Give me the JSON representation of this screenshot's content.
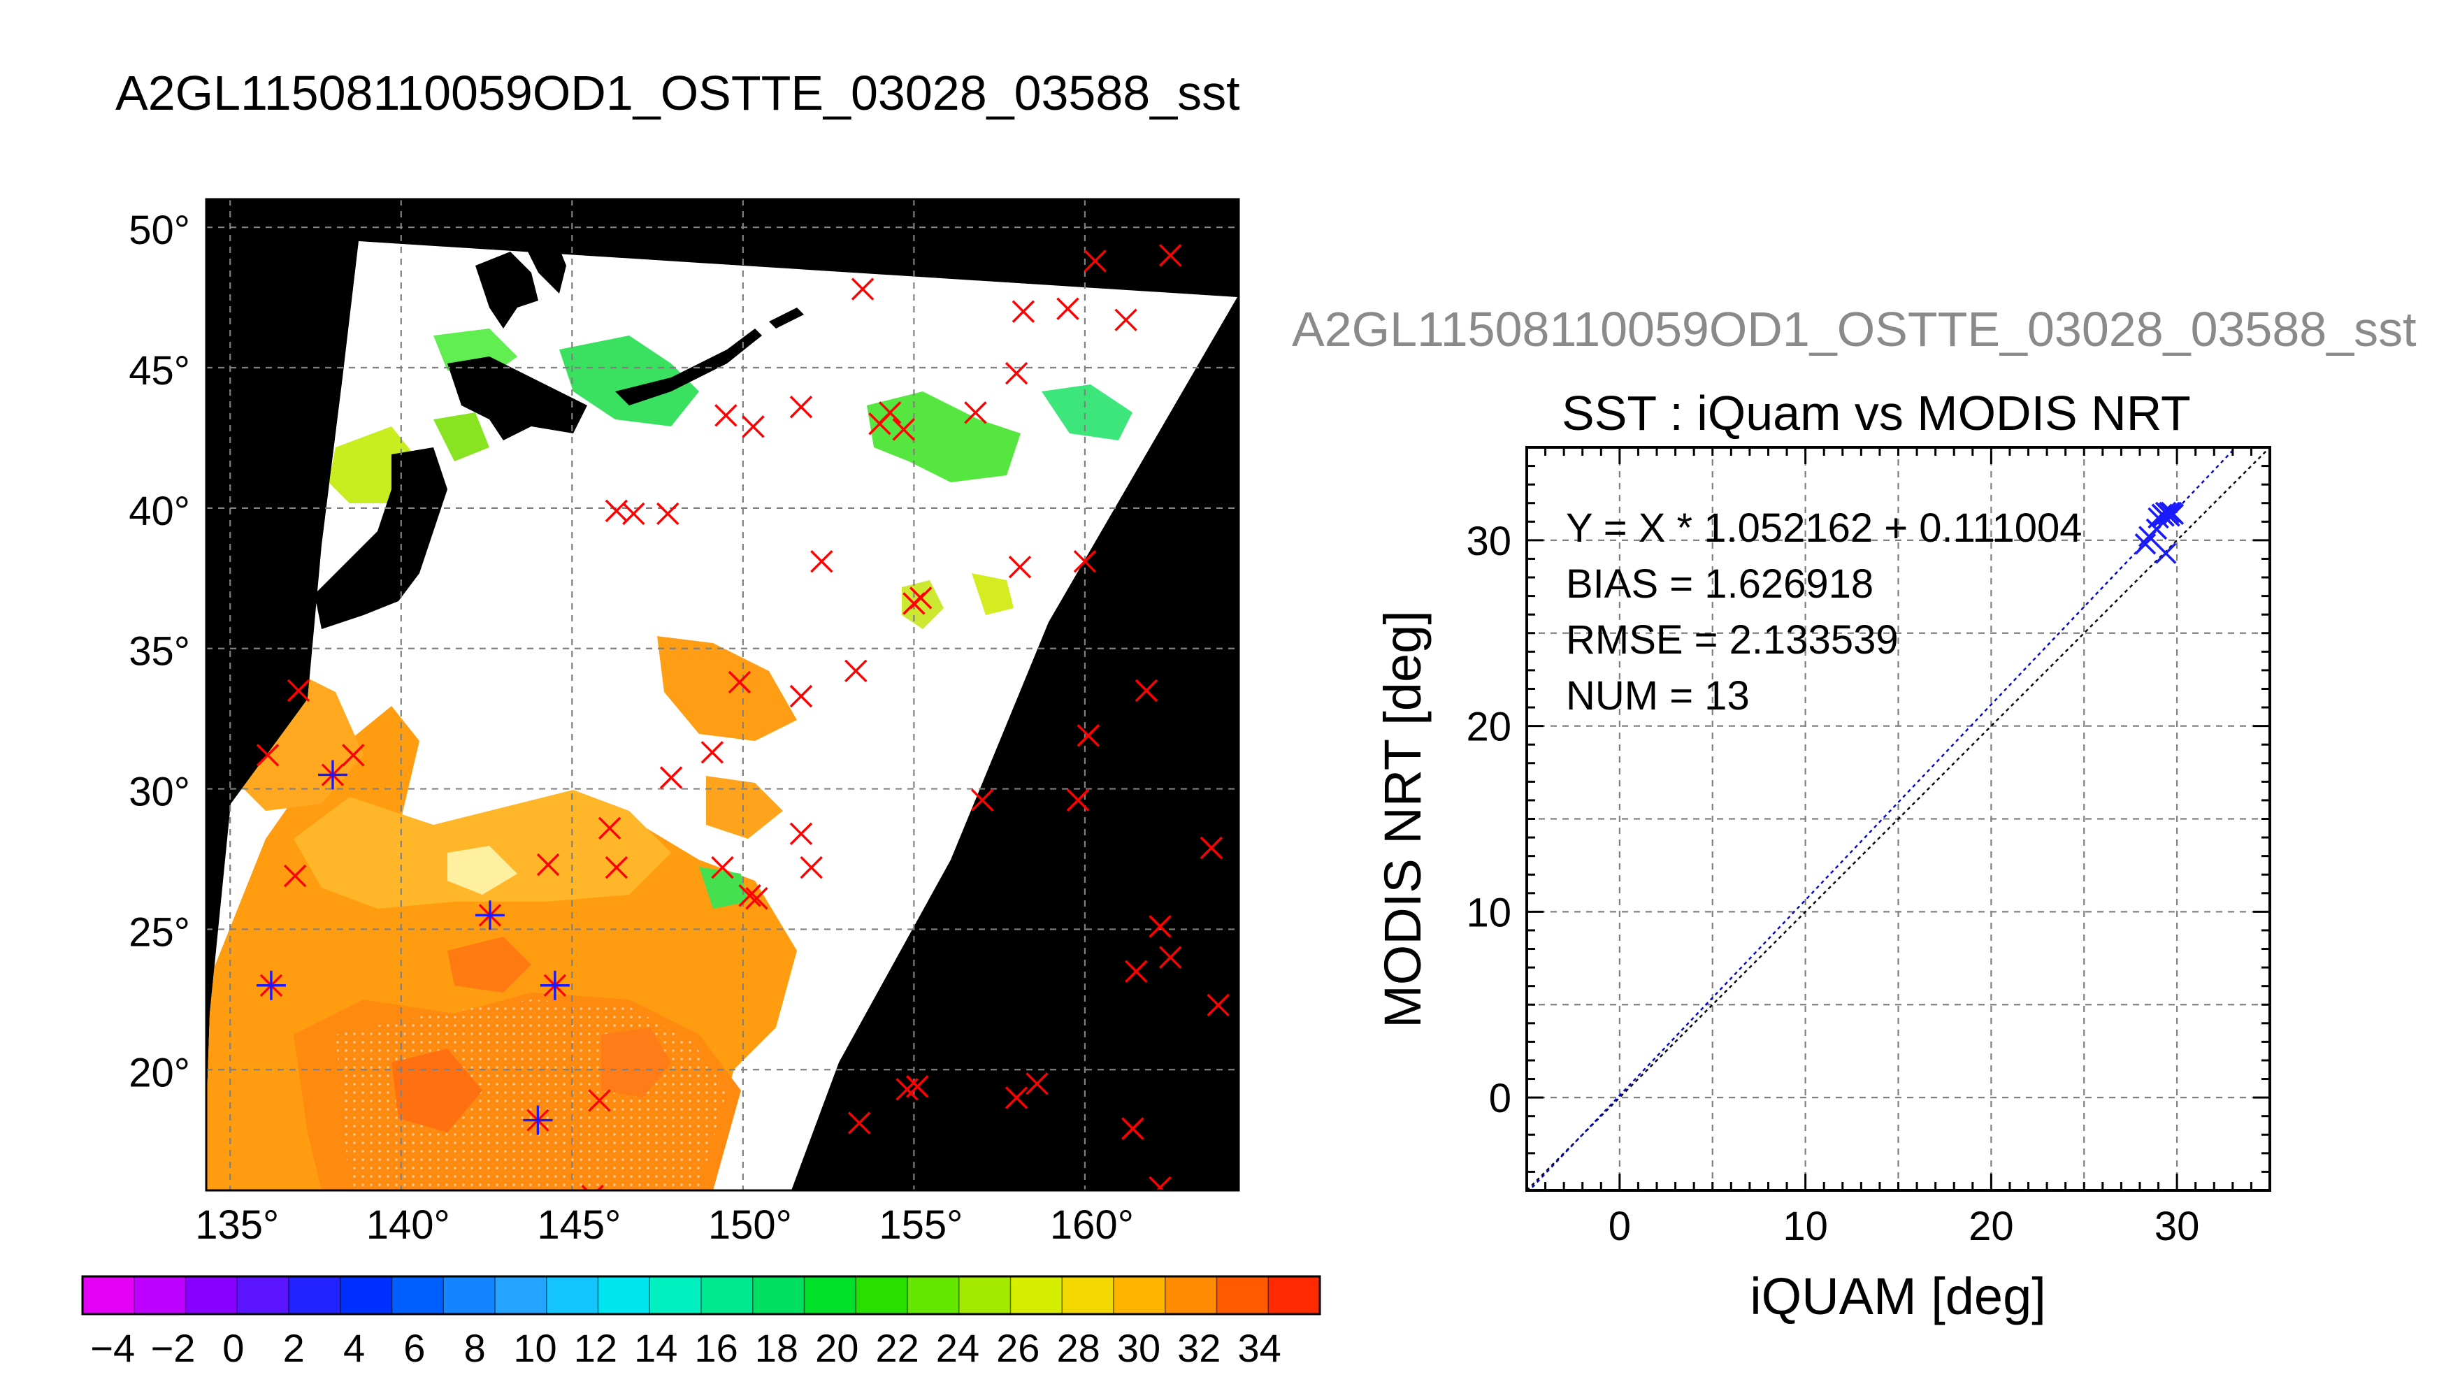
{
  "map": {
    "title": "A2GL11508110059OD1_OSTTE_03028_03588_sst",
    "lat_ticks": [
      20,
      25,
      30,
      35,
      40,
      45,
      50
    ],
    "lon_ticks": [
      135,
      140,
      145,
      150,
      155,
      160
    ],
    "degree_symbol": "°",
    "extent": {
      "lon": [
        134.3,
        164.5
      ],
      "lat": [
        15.7,
        51
      ]
    },
    "colorbar": {
      "ticks": [
        "−4",
        "−2",
        "0",
        "2",
        "4",
        "6",
        "8",
        "10",
        "12",
        "14",
        "16",
        "18",
        "20",
        "22",
        "24",
        "26",
        "28",
        "30",
        "32",
        "34"
      ],
      "colors": [
        "#e400f4",
        "#bd00ff",
        "#8800ff",
        "#5a14ff",
        "#2222ff",
        "#0030ff",
        "#0060ff",
        "#1584ff",
        "#24a4ff",
        "#14c4ff",
        "#00e6f0",
        "#00f0c0",
        "#00e890",
        "#00e060",
        "#00e028",
        "#28e000",
        "#64e600",
        "#a4ea00",
        "#d6ee00",
        "#f2d800",
        "#ffb400",
        "#ff8c00",
        "#ff5a00",
        "#ff2a00"
      ]
    },
    "markers": {
      "cross_color": "#ff0000",
      "star_color": "#1a1aff",
      "red_crosses": [
        [
          160.3,
          48.8
        ],
        [
          162.5,
          49.0
        ],
        [
          153.5,
          47.8
        ],
        [
          158.2,
          47.0
        ],
        [
          159.5,
          47.1
        ],
        [
          161.2,
          46.7
        ],
        [
          158.0,
          44.8
        ],
        [
          149.5,
          43.3
        ],
        [
          150.3,
          42.9
        ],
        [
          151.7,
          43.6
        ],
        [
          154.3,
          43.4
        ],
        [
          154.0,
          43.0
        ],
        [
          154.7,
          42.8
        ],
        [
          156.8,
          43.4
        ],
        [
          146.3,
          39.9
        ],
        [
          146.8,
          39.8
        ],
        [
          147.8,
          39.8
        ],
        [
          152.3,
          38.1
        ],
        [
          158.1,
          37.9
        ],
        [
          160.0,
          38.1
        ],
        [
          155.0,
          36.6
        ],
        [
          155.2,
          36.8
        ],
        [
          153.3,
          34.2
        ],
        [
          149.9,
          33.8
        ],
        [
          151.7,
          33.3
        ],
        [
          161.8,
          33.5
        ],
        [
          137.0,
          33.5
        ],
        [
          160.1,
          31.9
        ],
        [
          136.1,
          31.2
        ],
        [
          138.6,
          31.2
        ],
        [
          149.1,
          31.3
        ],
        [
          147.9,
          30.4
        ],
        [
          157.0,
          29.6
        ],
        [
          159.8,
          29.6
        ],
        [
          146.1,
          28.6
        ],
        [
          151.7,
          28.4
        ],
        [
          144.3,
          27.3
        ],
        [
          146.3,
          27.2
        ],
        [
          149.4,
          27.2
        ],
        [
          152.0,
          27.2
        ],
        [
          136.9,
          26.9
        ],
        [
          150.2,
          26.2
        ],
        [
          150.4,
          26.1
        ],
        [
          163.7,
          27.9
        ],
        [
          162.2,
          25.1
        ],
        [
          162.5,
          24.0
        ],
        [
          161.5,
          23.5
        ],
        [
          163.9,
          22.3
        ],
        [
          145.8,
          18.9
        ],
        [
          155.1,
          19.4
        ],
        [
          154.8,
          19.3
        ],
        [
          158.0,
          19.0
        ],
        [
          158.6,
          19.5
        ],
        [
          153.4,
          18.1
        ],
        [
          161.4,
          17.9
        ],
        [
          162.2,
          15.8
        ],
        [
          145.6,
          15.5
        ]
      ],
      "blue_stars": [
        [
          138.0,
          30.5
        ],
        [
          142.6,
          25.5
        ],
        [
          144.5,
          23.0
        ],
        [
          136.2,
          23.0
        ],
        [
          144.0,
          18.2
        ]
      ]
    }
  },
  "scatter": {
    "header": "A2GL11508110059OD1_OSTTE_03028_03588_sst",
    "title": "SST : iQuam vs MODIS NRT",
    "xlabel": "iQUAM [deg]",
    "ylabel": "MODIS NRT [deg]",
    "stats": [
      "Y = X * 1.052162 + 0.111004",
      "BIAS = 1.626918",
      "RMSE = 2.133539",
      "NUM = 13"
    ],
    "header_color": "#8a8a8a",
    "fit_color": "#0000cc"
  },
  "chart_data": [
    {
      "type": "scatter",
      "title": "SST : iQuam vs MODIS NRT",
      "xlabel": "iQUAM [deg]",
      "ylabel": "MODIS NRT [deg]",
      "xlim": [
        -5,
        35
      ],
      "ylim": [
        -5,
        35
      ],
      "xticks": [
        0,
        10,
        20,
        30
      ],
      "yticks": [
        0,
        10,
        20,
        30
      ],
      "grid": true,
      "series": [
        {
          "x": [
            28.3,
            28.5,
            28.9,
            29.0,
            29.2,
            29.3,
            29.4,
            29.5,
            29.6,
            29.6,
            29.7,
            29.8,
            29.4
          ],
          "y": [
            29.8,
            30.2,
            30.6,
            31.2,
            31.4,
            31.3,
            31.5,
            31.4,
            31.5,
            31.3,
            31.5,
            31.4,
            29.3
          ]
        }
      ],
      "fit": {
        "slope": 1.052162,
        "intercept": 0.111004
      },
      "reference_line": "y = x"
    }
  ]
}
